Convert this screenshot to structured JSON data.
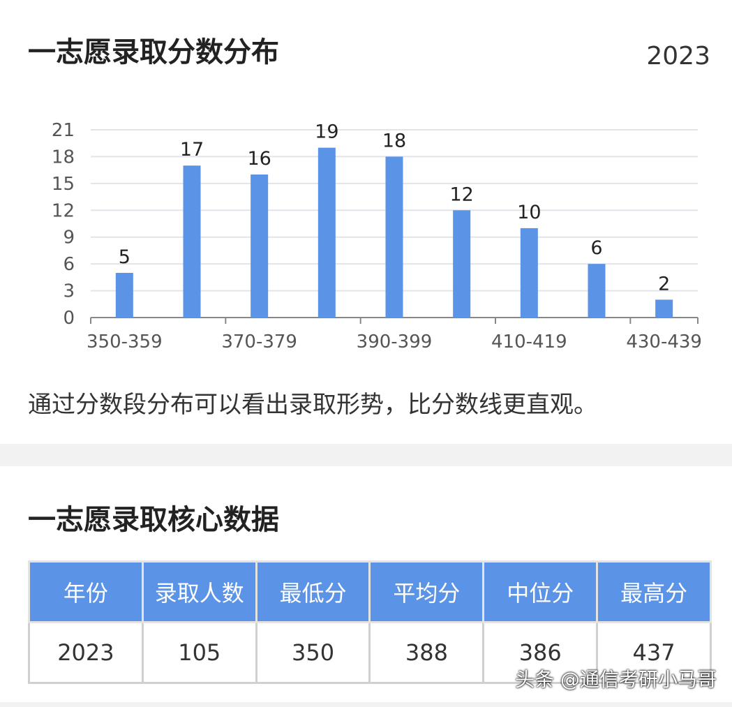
{
  "header": {
    "title": "一志愿录取分数分布",
    "year": "2023"
  },
  "chart_data": {
    "type": "bar",
    "categories": [
      "350-359",
      null,
      "370-379",
      null,
      "390-399",
      null,
      "410-419",
      null,
      "430-439"
    ],
    "values": [
      5,
      17,
      16,
      19,
      18,
      12,
      10,
      6,
      2
    ],
    "color": "#5b93e6",
    "ylim": [
      0,
      21
    ],
    "yticks": [
      0,
      3,
      6,
      9,
      12,
      15,
      18,
      21
    ],
    "grid": true
  },
  "note": "通过分数段分布可以看出录取形势，比分数线更直观。",
  "section2": {
    "title": "一志愿录取核心数据"
  },
  "table": {
    "columns": [
      "年份",
      "录取人数",
      "最低分",
      "平均分",
      "中位分",
      "最高分"
    ],
    "rows": [
      [
        2023,
        105,
        350,
        388,
        386,
        437
      ]
    ]
  },
  "watermark": "头条 @通信考研小马哥"
}
